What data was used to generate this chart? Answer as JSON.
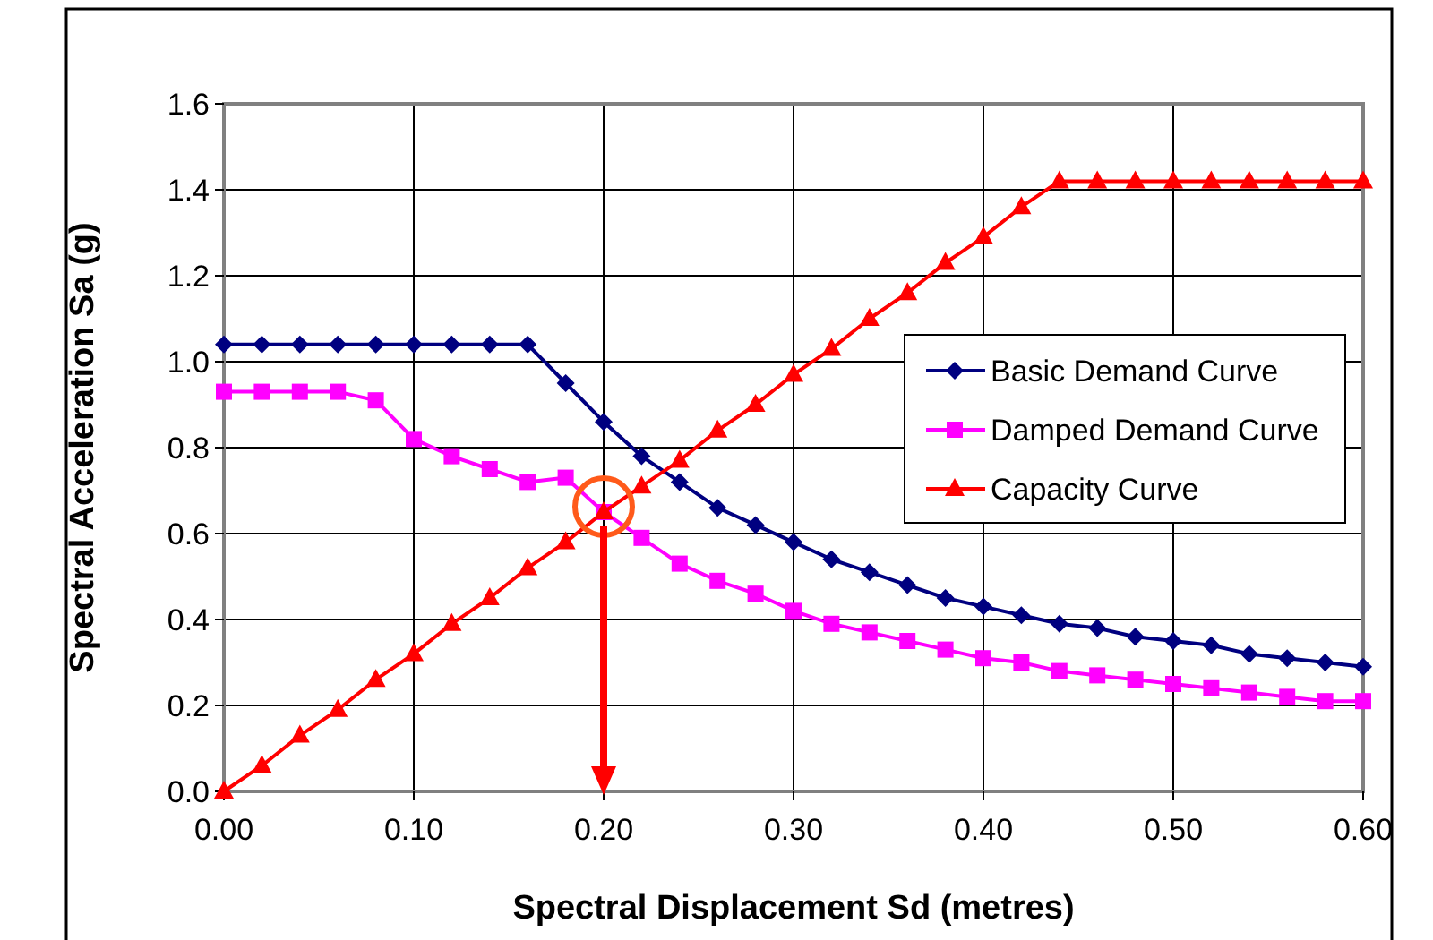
{
  "chart_data": {
    "type": "line",
    "xlabel": "Spectral Displacement Sd (metres)",
    "ylabel": "Spectral Acceleration Sa (g)",
    "x": [
      0,
      0.02,
      0.04,
      0.06,
      0.08,
      0.1,
      0.12,
      0.14,
      0.16,
      0.18,
      0.2,
      0.22,
      0.24,
      0.26,
      0.28,
      0.3,
      0.32,
      0.34,
      0.36,
      0.38,
      0.4,
      0.42,
      0.44,
      0.46,
      0.48,
      0.5,
      0.52,
      0.54,
      0.56,
      0.58,
      0.6
    ],
    "series": [
      {
        "name": "Basic Demand Curve",
        "color": "#000080",
        "marker": "diamond",
        "values": [
          1.04,
          1.04,
          1.04,
          1.04,
          1.04,
          1.04,
          1.04,
          1.04,
          1.04,
          0.95,
          0.86,
          0.78,
          0.72,
          0.66,
          0.62,
          0.58,
          0.54,
          0.51,
          0.48,
          0.45,
          0.43,
          0.41,
          0.39,
          0.38,
          0.36,
          0.35,
          0.34,
          0.32,
          0.31,
          0.3,
          0.29
        ]
      },
      {
        "name": "Damped Demand Curve",
        "color": "#ff00ff",
        "marker": "square",
        "values": [
          0.93,
          0.93,
          0.93,
          0.93,
          0.91,
          0.82,
          0.78,
          0.75,
          0.72,
          0.73,
          0.65,
          0.59,
          0.53,
          0.49,
          0.46,
          0.42,
          0.39,
          0.37,
          0.35,
          0.33,
          0.31,
          0.3,
          0.28,
          0.27,
          0.26,
          0.25,
          0.24,
          0.23,
          0.22,
          0.21,
          0.21
        ]
      },
      {
        "name": "Capacity Curve",
        "color": "#ff0000",
        "marker": "triangle",
        "values": [
          0,
          0.06,
          0.13,
          0.19,
          0.26,
          0.32,
          0.39,
          0.45,
          0.52,
          0.58,
          0.65,
          0.71,
          0.77,
          0.84,
          0.9,
          0.97,
          1.03,
          1.1,
          1.16,
          1.23,
          1.29,
          1.36,
          1.42,
          1.42,
          1.42,
          1.42,
          1.42,
          1.42,
          1.42,
          1.42,
          1.42
        ]
      }
    ],
    "xlim": [
      0,
      0.6
    ],
    "xticks": [
      {
        "value": 0,
        "label": "0.00"
      },
      {
        "value": 0.1,
        "label": "0.10"
      },
      {
        "value": 0.2,
        "label": "0.20"
      },
      {
        "value": 0.3,
        "label": "0.30"
      },
      {
        "value": 0.4,
        "label": "0.40"
      },
      {
        "value": 0.5,
        "label": "0.50"
      },
      {
        "value": 0.6,
        "label": "0.60"
      }
    ],
    "ylim": [
      0,
      1.6
    ],
    "yticks": [
      {
        "value": 0,
        "label": "0.0"
      },
      {
        "value": 0.2,
        "label": "0.2"
      },
      {
        "value": 0.4,
        "label": "0.4"
      },
      {
        "value": 0.6,
        "label": "0.6"
      },
      {
        "value": 0.8,
        "label": "0.8"
      },
      {
        "value": 1.0,
        "label": "1.0"
      },
      {
        "value": 1.2,
        "label": "1.2"
      },
      {
        "value": 1.4,
        "label": "1.4"
      },
      {
        "value": 1.6,
        "label": "1.6"
      }
    ],
    "ref_lines": [
      {
        "axis": "x",
        "value": 0.2,
        "color": "#ff0000"
      }
    ],
    "grid": true,
    "legend": "right",
    "line_style": "solid"
  }
}
